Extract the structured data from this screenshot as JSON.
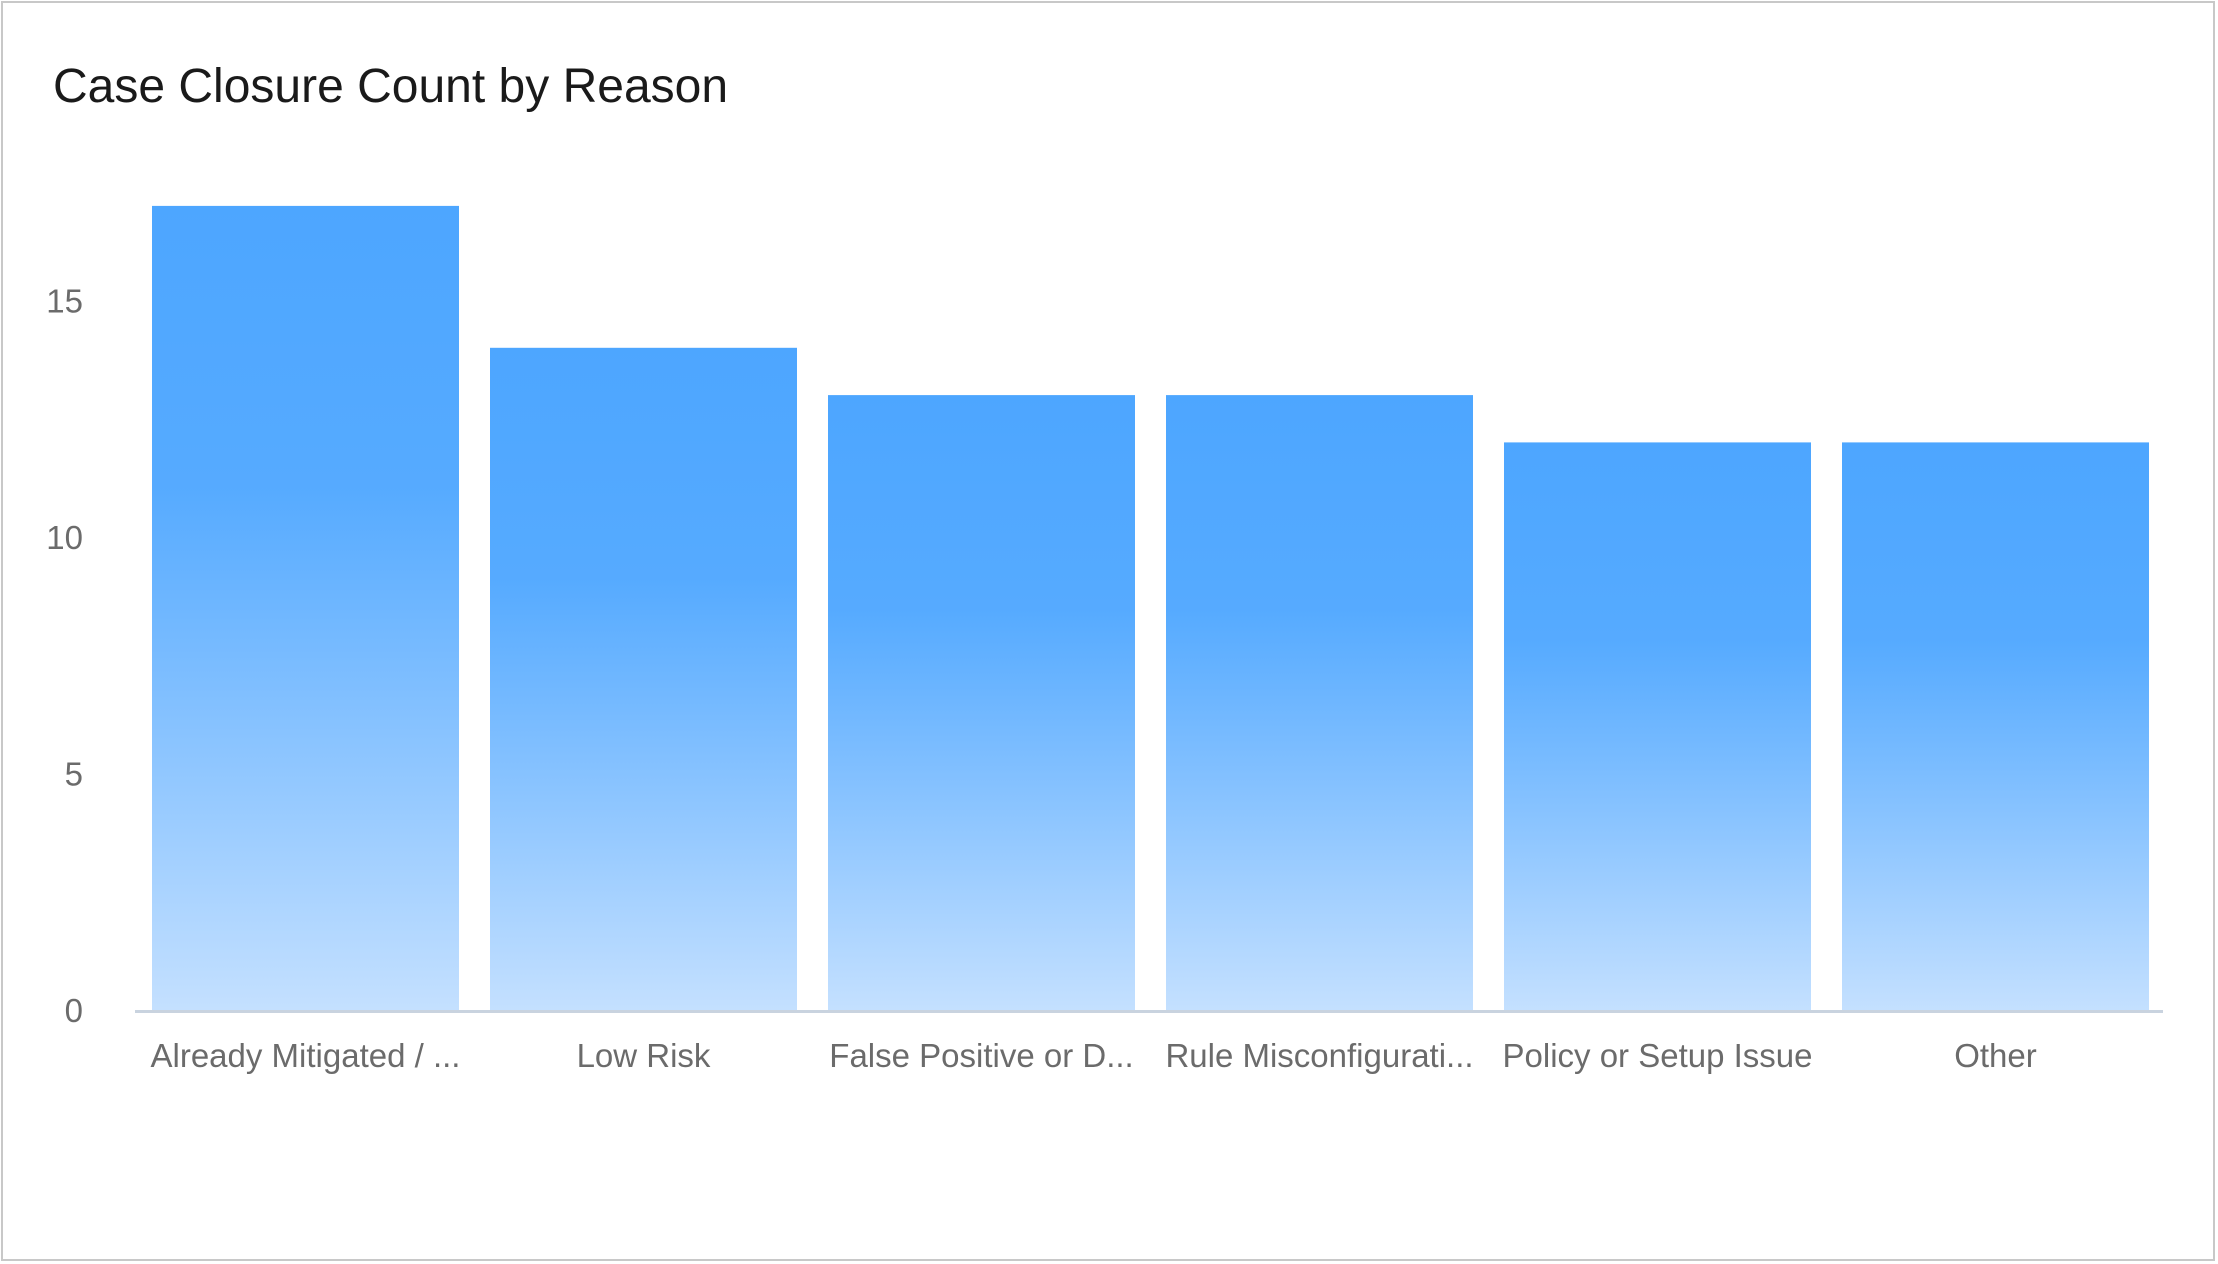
{
  "chart_data": {
    "type": "bar",
    "title": "Case Closure Count by Reason",
    "xlabel": "",
    "ylabel": "",
    "categories": [
      "Already Mitigated / ...",
      "Low Risk",
      "False Positive or D...",
      "Rule Misconfigurati...",
      "Policy or Setup Issue",
      "Other"
    ],
    "values": [
      17,
      14,
      13,
      13,
      12,
      12
    ],
    "yticks": [
      "0",
      "5",
      "10",
      "15"
    ],
    "ylim": [
      0,
      17
    ],
    "grid": false,
    "legend": "none",
    "colors": {
      "bar_top": "#4da6ff",
      "bar_bottom": "#c4e0ff",
      "axis": "#c9d3df",
      "tick_text": "#6b6b6b",
      "title_text": "#1a1a1a"
    }
  }
}
